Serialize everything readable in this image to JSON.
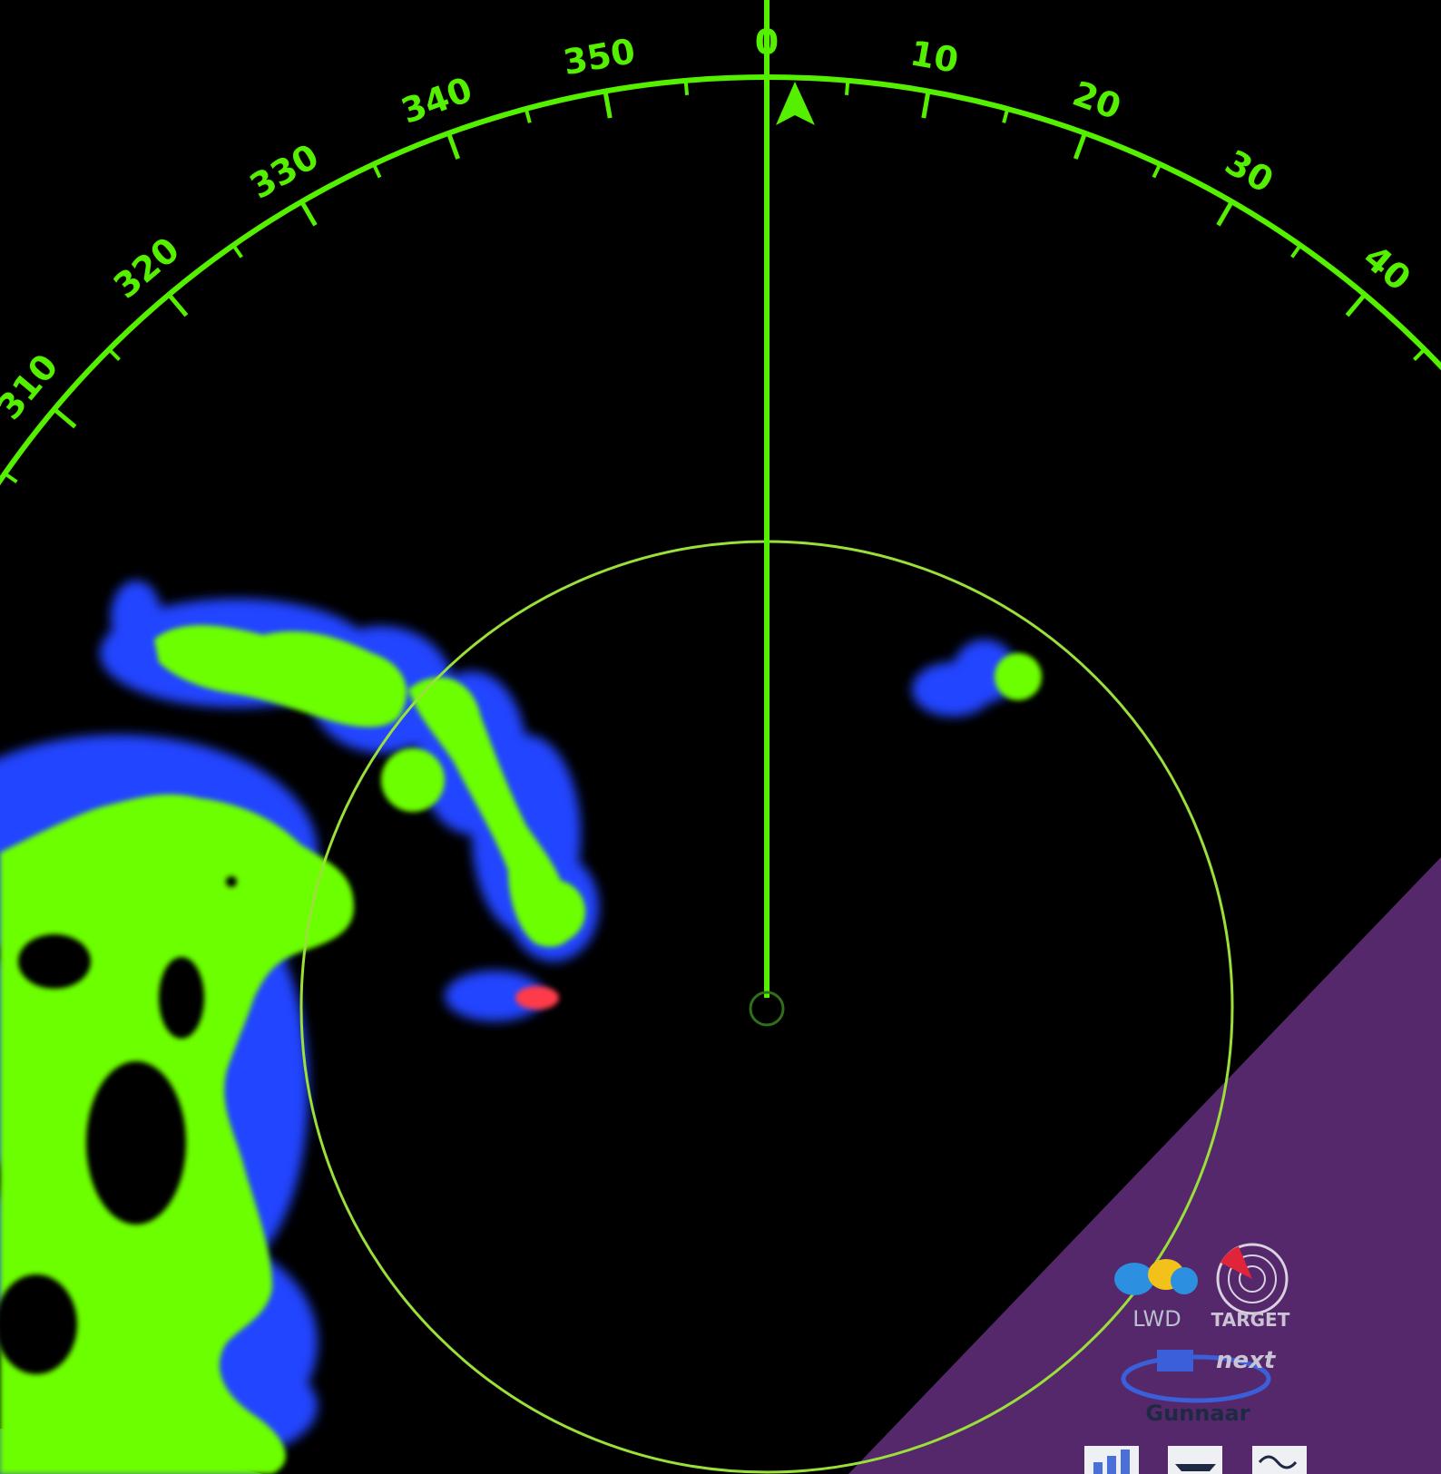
{
  "display": {
    "background_color": "#000000",
    "scale_color": "#55f000",
    "range_ring_color": "#9be03a",
    "heading_line_color": "#55f000",
    "overlay_panel_color": "#54286a",
    "bottom_left_panel_color": "#3a7590"
  },
  "bearing_scale": {
    "labels": [
      "310",
      "320",
      "330",
      "340",
      "350",
      "0",
      "10",
      "20",
      "30",
      "40"
    ],
    "heading_marker": "north-arrow-icon"
  },
  "echo_colors": {
    "strong": "#6cff00",
    "weak": "#2244ff",
    "target": "#ff3a4a"
  },
  "logos": {
    "logo_left_text": "LWD",
    "logo_right_text": "TARGET",
    "logo_middle_text": "next",
    "logo_bottom_text": "Gunnaar",
    "icons": [
      "bar-signal-icon",
      "boat-icon",
      "wave-icon"
    ]
  }
}
